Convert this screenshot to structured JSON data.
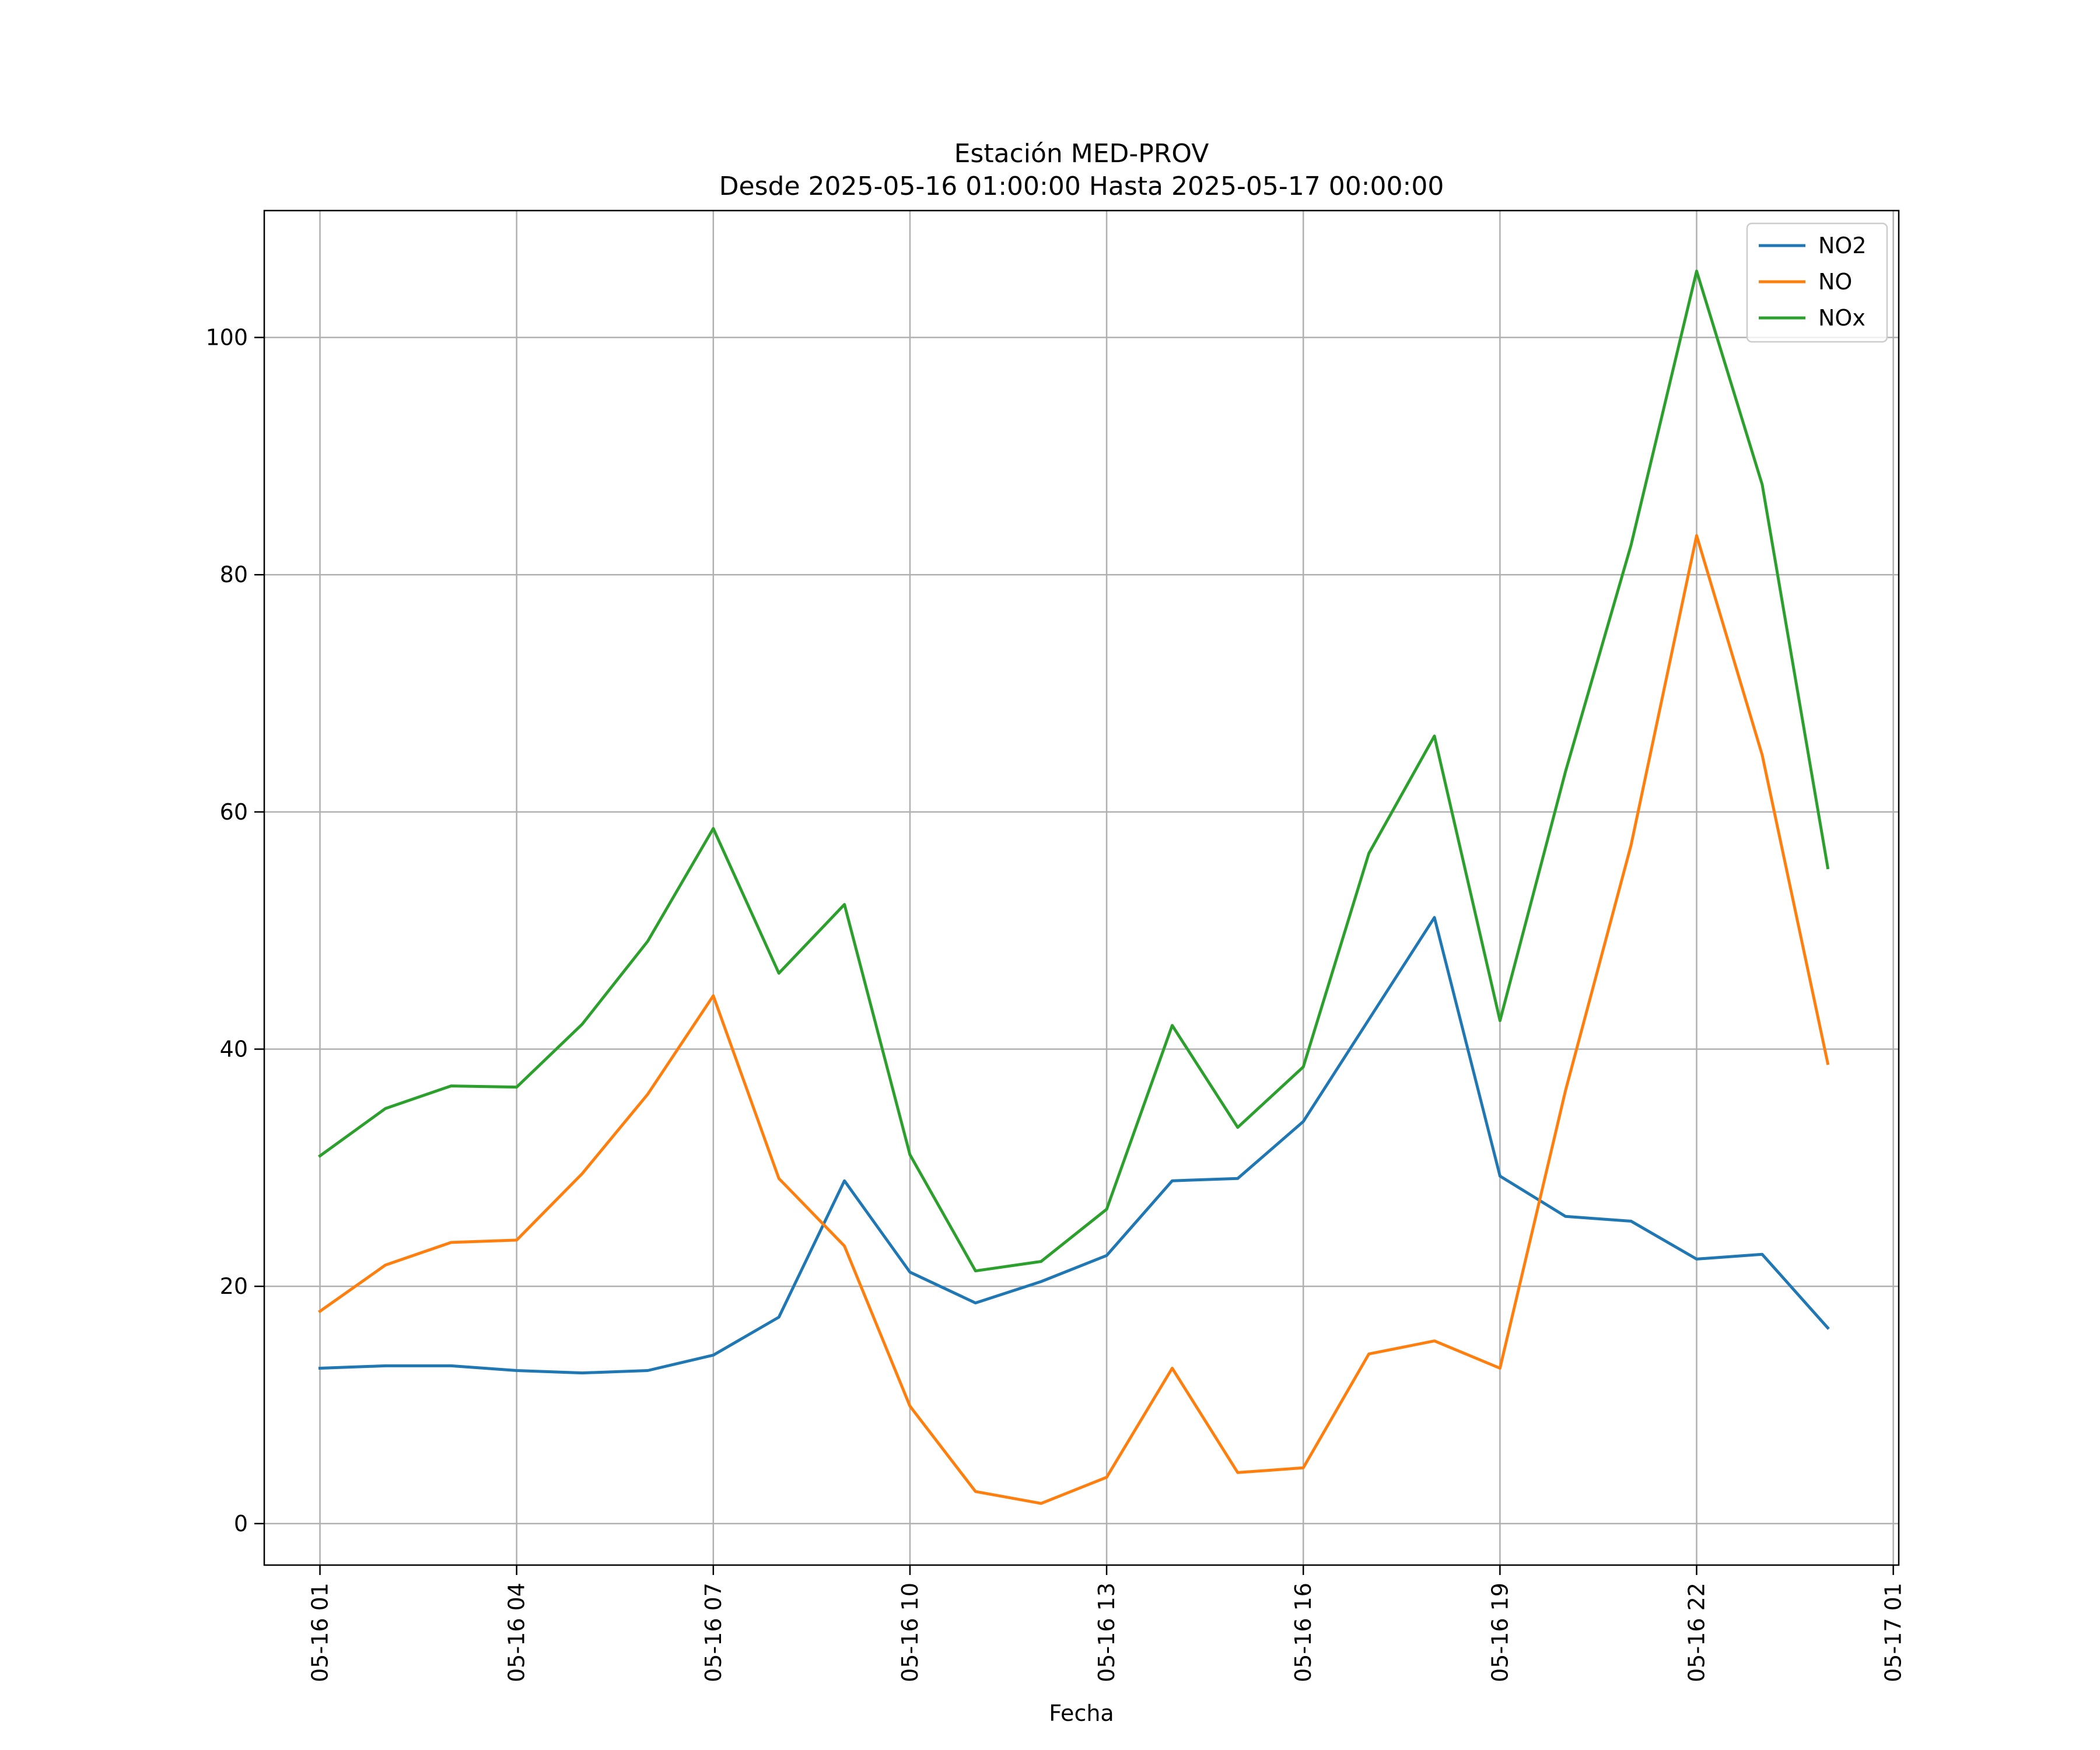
{
  "chart_data": {
    "type": "line",
    "title": [
      "Estación MED-PROV",
      "Desde 2025-05-16 01:00:00 Hasta 2025-05-17 00:00:00"
    ],
    "xlabel": "Fecha",
    "ylabel": "",
    "x": [
      "2025-05-16 01:00",
      "2025-05-16 02:00",
      "2025-05-16 03:00",
      "2025-05-16 04:00",
      "2025-05-16 05:00",
      "2025-05-16 06:00",
      "2025-05-16 07:00",
      "2025-05-16 08:00",
      "2025-05-16 09:00",
      "2025-05-16 10:00",
      "2025-05-16 11:00",
      "2025-05-16 12:00",
      "2025-05-16 13:00",
      "2025-05-16 14:00",
      "2025-05-16 15:00",
      "2025-05-16 16:00",
      "2025-05-16 17:00",
      "2025-05-16 18:00",
      "2025-05-16 19:00",
      "2025-05-16 20:00",
      "2025-05-16 21:00",
      "2025-05-16 22:00",
      "2025-05-16 23:00",
      "2025-05-17 00:00"
    ],
    "xlim": [
      "2025-05-16 00:09",
      "2025-05-17 01:05"
    ],
    "ylim": [
      -3.5,
      110.7
    ],
    "xticks": [
      "2025-05-16 01:00",
      "2025-05-16 04:00",
      "2025-05-16 07:00",
      "2025-05-16 10:00",
      "2025-05-16 13:00",
      "2025-05-16 16:00",
      "2025-05-16 19:00",
      "2025-05-16 22:00",
      "2025-05-17 01:00"
    ],
    "xtick_labels": [
      "05-16 01",
      "05-16 04",
      "05-16 07",
      "05-16 10",
      "05-16 13",
      "05-16 16",
      "05-16 19",
      "05-16 22",
      "05-17 01"
    ],
    "yticks": [
      0,
      20,
      40,
      60,
      80,
      100
    ],
    "ytick_labels": [
      "0",
      "20",
      "40",
      "60",
      "80",
      "100"
    ],
    "grid": true,
    "legend_position": "top-right",
    "series": [
      {
        "name": "NO2",
        "color": "#1f77b4",
        "values": [
          13.1,
          13.3,
          13.3,
          12.9,
          12.7,
          12.9,
          14.2,
          17.4,
          28.9,
          21.2,
          18.6,
          20.4,
          22.6,
          28.9,
          29.1,
          33.9,
          42.5,
          51.1,
          29.3,
          25.9,
          25.5,
          22.3,
          22.7,
          16.5
        ]
      },
      {
        "name": "NO",
        "color": "#ff7f0e",
        "values": [
          17.9,
          21.8,
          23.7,
          23.9,
          29.5,
          36.2,
          44.5,
          29.1,
          23.4,
          9.9,
          2.7,
          1.7,
          3.9,
          13.1,
          4.3,
          4.7,
          14.3,
          15.4,
          13.1,
          36.5,
          57.2,
          83.3,
          64.8,
          38.8
        ]
      },
      {
        "name": "NOx",
        "color": "#2ca02c",
        "values": [
          31.0,
          35.0,
          36.9,
          36.8,
          42.1,
          49.1,
          58.6,
          46.4,
          52.2,
          31.1,
          21.3,
          22.1,
          26.5,
          42.0,
          33.4,
          38.5,
          56.5,
          66.4,
          42.4,
          63.4,
          82.5,
          105.6,
          87.6,
          55.3
        ]
      }
    ]
  }
}
